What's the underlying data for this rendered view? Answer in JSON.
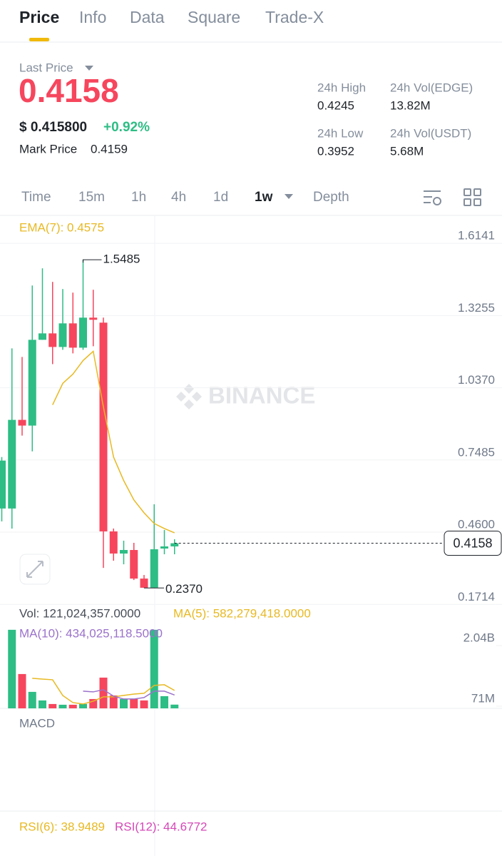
{
  "tabs": [
    "Price",
    "Info",
    "Data",
    "Square",
    "Trade-X"
  ],
  "header": {
    "last_price_label": "Last Price",
    "last_price": "0.4158",
    "usd_price": "$ 0.415800",
    "change": "+0.92%",
    "mark_price_label": "Mark Price",
    "mark_price": "0.4159",
    "stats": [
      {
        "label": "24h High",
        "value": "0.4245"
      },
      {
        "label": "24h Vol(EDGE)",
        "value": "13.82M"
      },
      {
        "label": "24h Low",
        "value": "0.3952"
      },
      {
        "label": "24h Vol(USDT)",
        "value": "5.68M"
      }
    ]
  },
  "intervals": [
    "Time",
    "15m",
    "1h",
    "4h",
    "1d",
    "1w",
    "Depth"
  ],
  "chart_data": [
    {
      "type": "candlestick",
      "watermark": "BINANCE",
      "grid": true,
      "up_color": "#2ebd85",
      "down_color": "#f6465d",
      "open": [
        0.5545,
        0.5545,
        0.9087,
        0.8858,
        1.2285,
        1.2542,
        1.1999,
        1.2942,
        1.1971,
        1.3171,
        1.2971,
        0.4631,
        0.3746,
        0.3888,
        0.2746,
        0.238,
        0.3946,
        0.4031
      ],
      "high": [
        0.7601,
        1.1943,
        1.16,
        1.4456,
        1.5141,
        1.4599,
        1.4313,
        1.417,
        1.5485,
        1.4285,
        1.3171,
        0.4745,
        0.426,
        0.4174,
        0.2889,
        0.5716,
        0.4688,
        0.4317
      ],
      "low": [
        0.5031,
        0.4745,
        0.8458,
        0.783,
        1.2285,
        1.1314,
        1.1885,
        1.1743,
        1.1885,
        1.2028,
        0.3174,
        0.346,
        0.3317,
        0.2689,
        0.237,
        0.237,
        0.3717,
        0.3717
      ],
      "close": [
        0.7459,
        0.9087,
        0.8858,
        1.2285,
        1.2542,
        1.1999,
        1.2942,
        1.1971,
        1.3171,
        1.3085,
        0.4631,
        0.3746,
        0.3888,
        0.2746,
        0.238,
        0.3917,
        0.4031,
        0.4158
      ],
      "series": [
        {
          "name": "EMA(7): 0.4575",
          "color": "#e8b923",
          "values": [
            null,
            null,
            null,
            null,
            null,
            0.9687,
            1.0543,
            1.0914,
            1.1457,
            1.1828,
            0.9601,
            0.7601,
            0.6659,
            0.5888,
            0.5374,
            0.4945,
            0.4745,
            0.4575
          ]
        }
      ],
      "high_label": 1.5485,
      "low_label": {
        "value": 0.237,
        "label": "0.2370"
      },
      "last_price": 0.4158,
      "ylim": [
        0.1694,
        1.7169
      ],
      "yticks": [
        1.6141,
        1.3255,
        {
          "value": 1.037,
          "label": "1.0370"
        },
        0.7485,
        {
          "value": 0.46,
          "label": "0.4600"
        },
        0.1714
      ]
    },
    {
      "type": "bar",
      "series": [
        {
          "name": "Vol: 121,024,357.0000",
          "values": [
            null,
            2553000000,
            1115000000,
            535000000,
            257000000,
            141000000,
            117000000,
            117000000,
            141000000,
            303000000,
            999000000,
            419000000,
            303000000,
            303000000,
            257000000,
            2553000000,
            396000000,
            121024357
          ]
        },
        {
          "name": "MA(5): 582,279,418.0000",
          "color": "#e8b923",
          "values": [
            null,
            null,
            null,
            976000000,
            952000000,
            929000000,
            419000000,
            187000000,
            141000000,
            233000000,
            373000000,
            373000000,
            419000000,
            465000000,
            489000000,
            744000000,
            767000000,
            582279418
          ]
        },
        {
          "name": "MA(10): 434,025,118.5000",
          "color": "#9b72cb",
          "values": [
            null,
            null,
            null,
            null,
            null,
            null,
            null,
            null,
            558000000,
            535000000,
            605000000,
            396000000,
            303000000,
            303000000,
            350000000,
            558000000,
            558000000,
            434025118.5
          ]
        }
      ],
      "ylim": [
        0,
        2620000000
      ],
      "yticks": [
        {
          "value": 2040000000,
          "label": "2.04B"
        },
        {
          "value": 71000000,
          "label": "71M"
        }
      ]
    }
  ],
  "indicators": {
    "macd": "MACD",
    "rsi": [
      {
        "name": "RSI(6): 38.9489",
        "color": "#e8b923"
      },
      {
        "name": "RSI(12): 44.6772",
        "color": "#d548b7"
      }
    ]
  }
}
